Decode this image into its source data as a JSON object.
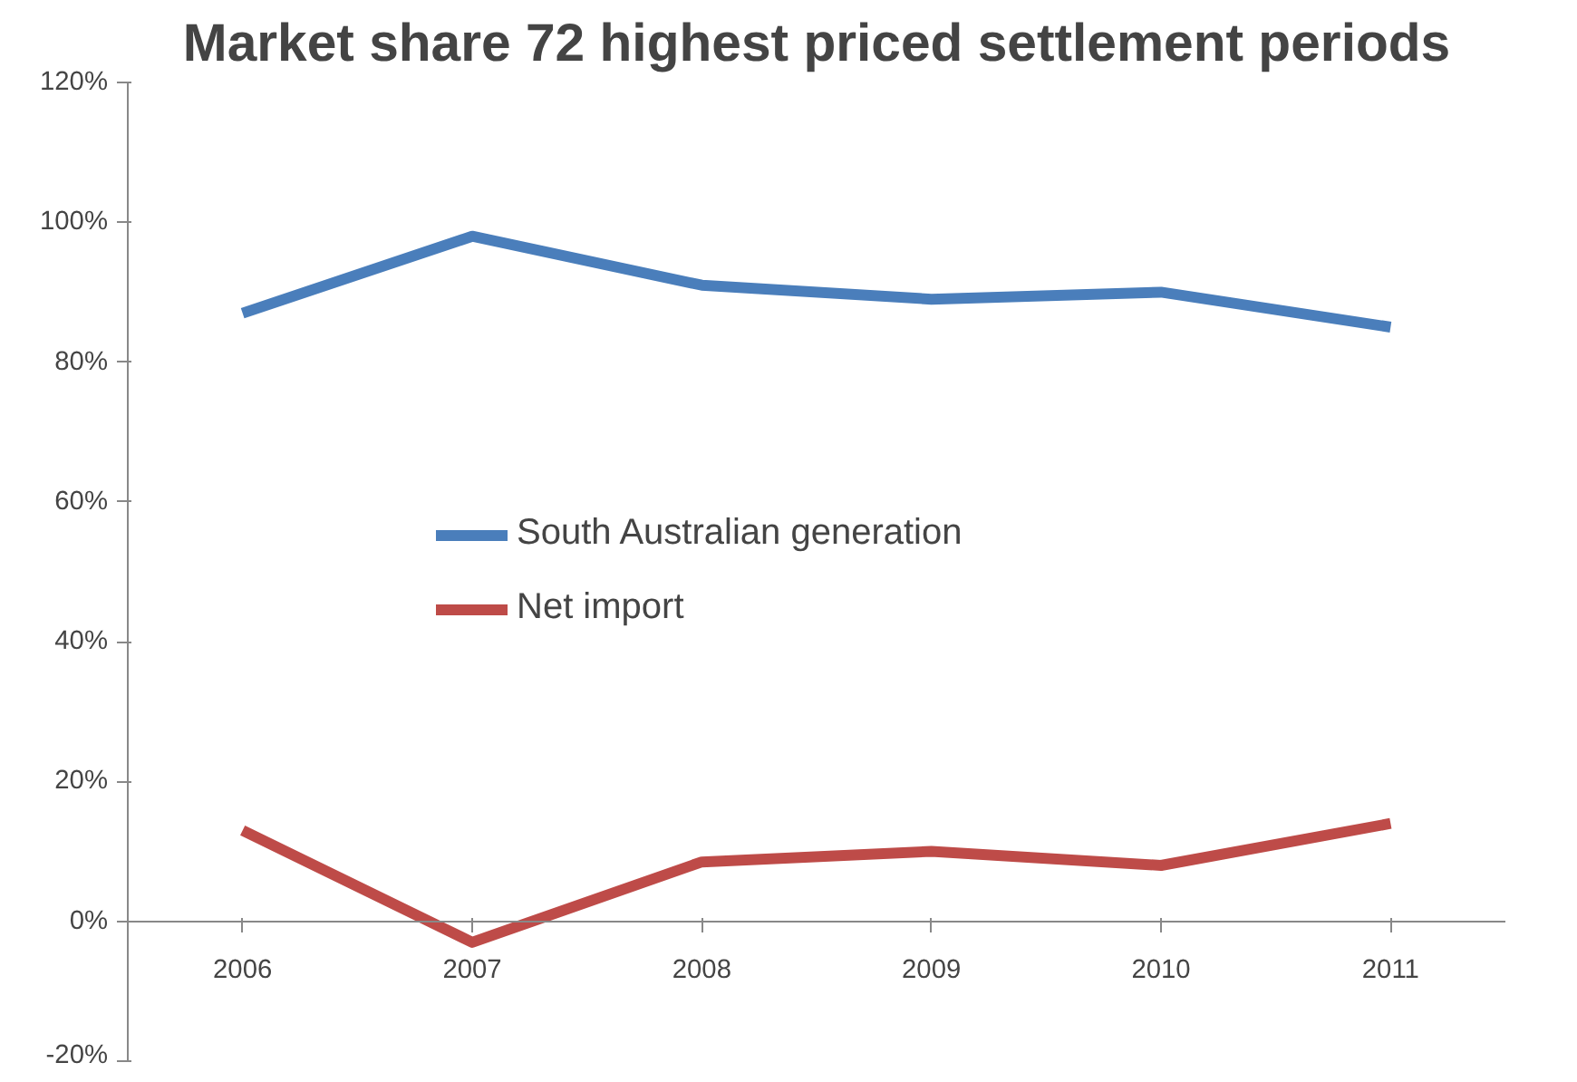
{
  "chart_data": {
    "type": "line",
    "title": "Market share 72 highest priced settlement periods",
    "categories": [
      "2006",
      "2007",
      "2008",
      "2009",
      "2010",
      "2011"
    ],
    "series": [
      {
        "name": "South Australian generation",
        "color": "#4a7ebb",
        "values": [
          87,
          98,
          91,
          89,
          90,
          85
        ]
      },
      {
        "name": "Net import",
        "color": "#be4b48",
        "values": [
          13,
          -3,
          8.5,
          10,
          8,
          14
        ]
      }
    ],
    "ylim": [
      -20,
      120
    ],
    "yticks": [
      {
        "value": -20,
        "label": "-20%"
      },
      {
        "value": 0,
        "label": "0%"
      },
      {
        "value": 20,
        "label": "20%"
      },
      {
        "value": 40,
        "label": "40%"
      },
      {
        "value": 60,
        "label": "60%"
      },
      {
        "value": 80,
        "label": "80%"
      },
      {
        "value": 100,
        "label": "100%"
      },
      {
        "value": 120,
        "label": "120%"
      }
    ],
    "grid": false,
    "legend": "left",
    "marker": "none",
    "line_style": "solid"
  }
}
